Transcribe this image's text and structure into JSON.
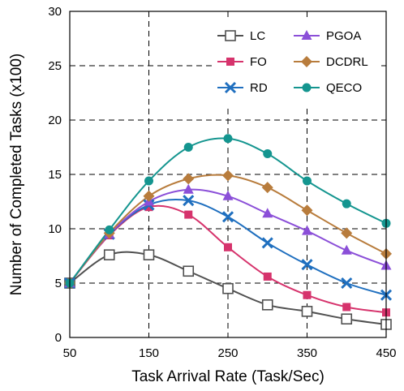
{
  "chart_data": {
    "type": "line",
    "xlabel": "Task Arrival Rate (Task/Sec)",
    "ylabel": "Number of Completed Tasks (x100)",
    "xlim": [
      50,
      450
    ],
    "ylim": [
      0,
      30
    ],
    "xticks": [
      50,
      150,
      250,
      350,
      450
    ],
    "yticks": [
      0,
      5,
      10,
      15,
      20,
      25,
      30
    ],
    "grid": "dashed",
    "legend": "top-right",
    "x": [
      50,
      100,
      150,
      200,
      250,
      300,
      350,
      400,
      450
    ],
    "series": [
      {
        "name": "LC",
        "marker": "square-open",
        "color": "#505050",
        "values": [
          5.0,
          7.6,
          7.6,
          6.1,
          4.5,
          3.0,
          2.4,
          1.7,
          1.2
        ]
      },
      {
        "name": "FO",
        "marker": "square",
        "color": "#d6336c",
        "values": [
          5.0,
          9.4,
          12.0,
          11.3,
          8.3,
          5.6,
          3.9,
          2.8,
          2.3
        ]
      },
      {
        "name": "RD",
        "marker": "x",
        "color": "#1f6fbf",
        "values": [
          5.0,
          9.5,
          12.2,
          12.6,
          11.1,
          8.7,
          6.7,
          5.0,
          3.9
        ]
      },
      {
        "name": "PGOA",
        "marker": "triangle",
        "color": "#8b4fd8",
        "values": [
          5.0,
          9.5,
          12.5,
          13.6,
          13.0,
          11.4,
          9.8,
          8.0,
          6.6
        ]
      },
      {
        "name": "DCDRL",
        "marker": "diamond",
        "color": "#b87c3c",
        "values": [
          5.0,
          9.6,
          13.0,
          14.6,
          14.9,
          13.8,
          11.7,
          9.6,
          7.7
        ]
      },
      {
        "name": "QECO",
        "marker": "circle",
        "color": "#14958f",
        "values": [
          5.0,
          9.9,
          14.4,
          17.5,
          18.3,
          16.9,
          14.4,
          12.3,
          10.5
        ]
      }
    ]
  }
}
